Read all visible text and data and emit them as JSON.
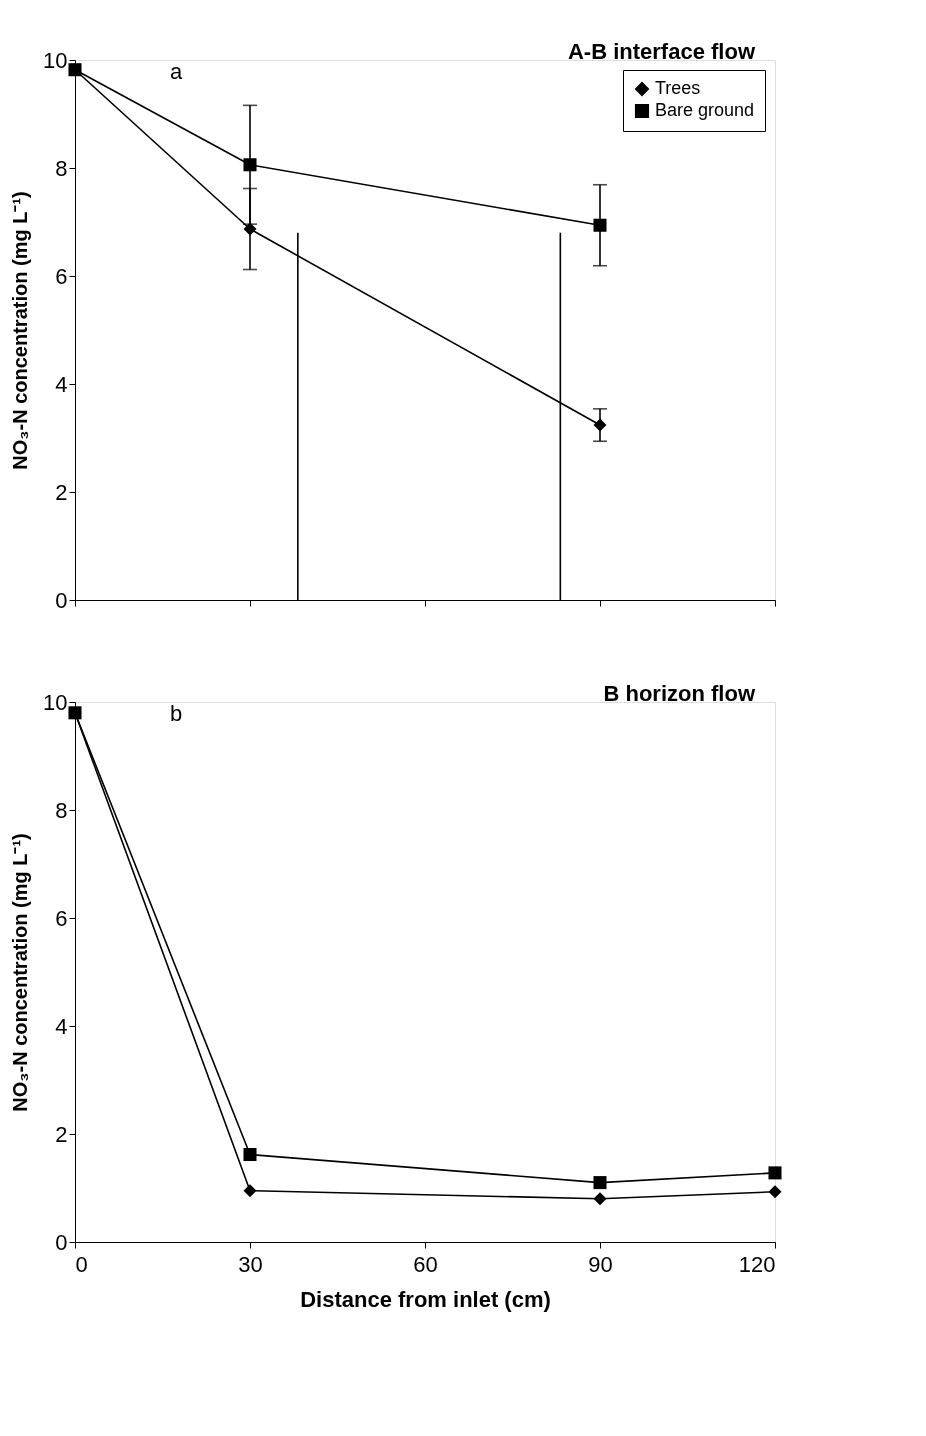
{
  "chart_data": [
    {
      "type": "line",
      "title": "A-B interface flow",
      "ylabel": "NO₃-N concentration (mg L⁻¹)",
      "annotations": [
        "a"
      ],
      "xlim": [
        0,
        120
      ],
      "xticks": [
        0,
        30,
        60,
        90,
        120
      ],
      "ylim": [
        0,
        10
      ],
      "yticks": [
        0,
        2,
        4,
        6,
        8,
        10
      ],
      "tick_labels": "y",
      "grid": false,
      "legend": "top right",
      "line_style": "solid",
      "series": [
        {
          "name": "Trees",
          "color": "#000000",
          "marker": "diamond",
          "x": [
            0,
            30,
            90
          ],
          "values": [
            9.82,
            6.87,
            3.24
          ],
          "errors": [
            null,
            0.75,
            0.3
          ]
        },
        {
          "name": "Bare ground",
          "color": "#000000",
          "marker": "square",
          "x": [
            0,
            30,
            90
          ],
          "values": [
            9.82,
            8.06,
            6.94
          ],
          "errors": [
            null,
            1.1,
            0.75
          ]
        },
        {
          "color": "#000000",
          "marker": "none",
          "x": [
            38.2,
            38.2
          ],
          "values": [
            0,
            6.8
          ]
        },
        {
          "color": "#000000",
          "marker": "none",
          "x": [
            83.2,
            83.2
          ],
          "values": [
            0,
            6.8
          ]
        }
      ]
    },
    {
      "type": "line",
      "title": "B horizon flow",
      "xlabel": "Distance from inlet (cm)",
      "ylabel": "NO₃-N concentration (mg L⁻¹)",
      "annotations": [
        "b"
      ],
      "xlim": [
        0,
        120
      ],
      "xticks": [
        0,
        30,
        60,
        90,
        120
      ],
      "ylim": [
        0,
        10
      ],
      "yticks": [
        0,
        2,
        4,
        6,
        8,
        10
      ],
      "grid": false,
      "line_style": "solid",
      "series": [
        {
          "color": "#000000",
          "marker": "diamond",
          "x": [
            0,
            30,
            90,
            120
          ],
          "values": [
            9.8,
            0.95,
            0.8,
            0.93
          ]
        },
        {
          "color": "#000000",
          "marker": "square",
          "x": [
            0,
            30,
            90,
            120
          ],
          "values": [
            9.8,
            1.62,
            1.1,
            1.28
          ]
        }
      ]
    }
  ]
}
